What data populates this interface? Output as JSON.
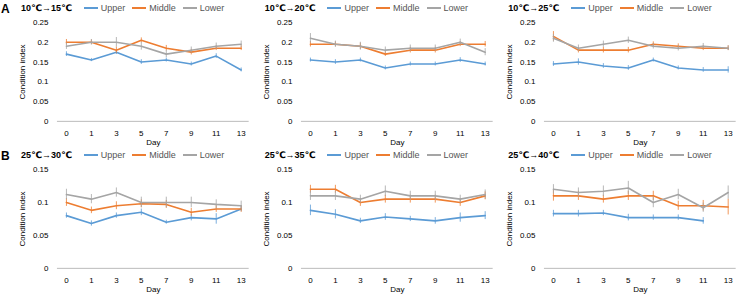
{
  "row_labels": [
    "A",
    "B"
  ],
  "chart_data": [
    {
      "type": "line",
      "title": "10℃→15℃",
      "x_label": "Day",
      "y_label": "Condition index",
      "legend": "top",
      "categories": [
        "0",
        "1",
        "3",
        "5",
        "7",
        "9",
        "11",
        "13"
      ],
      "ylim": [
        0,
        0.25
      ],
      "yticks": [
        0,
        0.05,
        0.1,
        0.15,
        0.2,
        0.25
      ],
      "series": [
        {
          "name": "Upper",
          "color": "#5b9bd5",
          "values": [
            0.17,
            0.155,
            0.175,
            0.15,
            0.155,
            0.145,
            0.165,
            0.13
          ],
          "errors": [
            0.006,
            0.004,
            0.006,
            0.006,
            0.005,
            0.005,
            0.006,
            0.005
          ]
        },
        {
          "name": "Middle",
          "color": "#ed7d31",
          "values": [
            0.2,
            0.2,
            0.18,
            0.205,
            0.185,
            0.175,
            0.185,
            0.185
          ],
          "errors": [
            0.007,
            0.006,
            0.008,
            0.006,
            0.007,
            0.007,
            0.006,
            0.006
          ]
        },
        {
          "name": "Lower",
          "color": "#a5a5a5",
          "values": [
            0.19,
            0.2,
            0.2,
            0.19,
            0.17,
            0.18,
            0.19,
            0.195
          ],
          "errors": [
            0.008,
            0.007,
            0.012,
            0.01,
            0.009,
            0.008,
            0.008,
            0.008
          ]
        }
      ]
    },
    {
      "type": "line",
      "title": "10℃→20℃",
      "x_label": "Day",
      "y_label": "Condition index",
      "legend": "top",
      "categories": [
        "0",
        "1",
        "3",
        "5",
        "7",
        "9",
        "11",
        "13"
      ],
      "ylim": [
        0,
        0.25
      ],
      "yticks": [
        0,
        0.05,
        0.1,
        0.15,
        0.2,
        0.25
      ],
      "series": [
        {
          "name": "Upper",
          "color": "#5b9bd5",
          "values": [
            0.155,
            0.15,
            0.155,
            0.135,
            0.145,
            0.145,
            0.155,
            0.145
          ],
          "errors": [
            0.005,
            0.006,
            0.005,
            0.005,
            0.005,
            0.005,
            0.006,
            0.005
          ]
        },
        {
          "name": "Middle",
          "color": "#ed7d31",
          "values": [
            0.195,
            0.195,
            0.19,
            0.17,
            0.18,
            0.18,
            0.195,
            0.195
          ],
          "errors": [
            0.007,
            0.006,
            0.008,
            0.006,
            0.007,
            0.007,
            0.006,
            0.007
          ]
        },
        {
          "name": "Lower",
          "color": "#a5a5a5",
          "values": [
            0.21,
            0.195,
            0.19,
            0.18,
            0.185,
            0.185,
            0.2,
            0.175
          ],
          "errors": [
            0.012,
            0.008,
            0.01,
            0.008,
            0.008,
            0.008,
            0.008,
            0.009
          ]
        }
      ]
    },
    {
      "type": "line",
      "title": "10℃→25℃",
      "x_label": "Day",
      "y_label": "Condition index",
      "legend": "top",
      "categories": [
        "0",
        "1",
        "3",
        "5",
        "7",
        "9",
        "11",
        "13"
      ],
      "ylim": [
        0,
        0.25
      ],
      "yticks": [
        0,
        0.05,
        0.1,
        0.15,
        0.2,
        0.25
      ],
      "series": [
        {
          "name": "Upper",
          "color": "#5b9bd5",
          "values": [
            0.145,
            0.15,
            0.14,
            0.135,
            0.155,
            0.135,
            0.13,
            0.13
          ],
          "errors": [
            0.006,
            0.008,
            0.006,
            0.006,
            0.005,
            0.005,
            0.006,
            0.008
          ]
        },
        {
          "name": "Middle",
          "color": "#ed7d31",
          "values": [
            0.215,
            0.18,
            0.18,
            0.18,
            0.195,
            0.19,
            0.185,
            0.185
          ],
          "errors": [
            0.012,
            0.007,
            0.007,
            0.007,
            0.006,
            0.006,
            0.006,
            0.006
          ]
        },
        {
          "name": "Lower",
          "color": "#a5a5a5",
          "values": [
            0.21,
            0.185,
            0.195,
            0.205,
            0.19,
            0.185,
            0.19,
            0.185
          ],
          "errors": [
            0.01,
            0.008,
            0.008,
            0.008,
            0.007,
            0.007,
            0.007,
            0.006
          ]
        }
      ]
    },
    {
      "type": "line",
      "title": "25℃→30℃",
      "x_label": "Day",
      "y_label": "Condition index",
      "legend": "top",
      "categories": [
        "0",
        "1",
        "3",
        "5",
        "7",
        "9",
        "11",
        "13"
      ],
      "ylim": [
        0,
        0.15
      ],
      "yticks": [
        0,
        0.05,
        0.1,
        0.15
      ],
      "series": [
        {
          "name": "Upper",
          "color": "#5b9bd5",
          "values": [
            0.08,
            0.068,
            0.08,
            0.085,
            0.07,
            0.077,
            0.075,
            0.09
          ],
          "errors": [
            0.004,
            0.004,
            0.004,
            0.005,
            0.003,
            0.005,
            0.008,
            0.004
          ]
        },
        {
          "name": "Middle",
          "color": "#ed7d31",
          "values": [
            0.1,
            0.088,
            0.095,
            0.098,
            0.097,
            0.085,
            0.09,
            0.09
          ],
          "errors": [
            0.006,
            0.005,
            0.006,
            0.006,
            0.006,
            0.006,
            0.005,
            0.005
          ]
        },
        {
          "name": "Lower",
          "color": "#a5a5a5",
          "values": [
            0.112,
            0.105,
            0.115,
            0.1,
            0.1,
            0.1,
            0.097,
            0.095
          ],
          "errors": [
            0.008,
            0.007,
            0.007,
            0.008,
            0.008,
            0.008,
            0.007,
            0.007
          ]
        }
      ]
    },
    {
      "type": "line",
      "title": "25℃→35℃",
      "x_label": "Day",
      "y_label": "Condition index",
      "legend": "top",
      "categories": [
        "0",
        "1",
        "3",
        "5",
        "7",
        "9",
        "11",
        "13"
      ],
      "ylim": [
        0,
        0.15
      ],
      "yticks": [
        0,
        0.05,
        0.1,
        0.15
      ],
      "series": [
        {
          "name": "Upper",
          "color": "#5b9bd5",
          "values": [
            0.088,
            0.082,
            0.072,
            0.078,
            0.075,
            0.072,
            0.077,
            0.08
          ],
          "errors": [
            0.008,
            0.007,
            0.004,
            0.005,
            0.004,
            0.005,
            0.007,
            0.006
          ]
        },
        {
          "name": "Middle",
          "color": "#ed7d31",
          "values": [
            0.12,
            0.12,
            0.1,
            0.105,
            0.105,
            0.105,
            0.1,
            0.11
          ],
          "errors": [
            0.006,
            0.006,
            0.006,
            0.006,
            0.006,
            0.006,
            0.006,
            0.006
          ]
        },
        {
          "name": "Lower",
          "color": "#a5a5a5",
          "values": [
            0.11,
            0.11,
            0.105,
            0.117,
            0.11,
            0.11,
            0.105,
            0.112
          ],
          "errors": [
            0.007,
            0.007,
            0.006,
            0.008,
            0.007,
            0.007,
            0.006,
            0.007
          ]
        }
      ]
    },
    {
      "type": "line",
      "title": "25℃→40℃",
      "x_label": "Day",
      "y_label": "Condition index",
      "legend": "top",
      "categories": [
        "0",
        "1",
        "3",
        "5",
        "7",
        "9",
        "11",
        "13"
      ],
      "ylim": [
        0,
        0.15
      ],
      "yticks": [
        0,
        0.05,
        0.1,
        0.15
      ],
      "series": [
        {
          "name": "Upper",
          "color": "#5b9bd5",
          "values": [
            0.083,
            0.083,
            0.084,
            0.077,
            0.077,
            0.077,
            0.072,
            null
          ],
          "errors": [
            0.005,
            0.005,
            0.004,
            0.005,
            0.004,
            0.004,
            0.005,
            null
          ]
        },
        {
          "name": "Middle",
          "color": "#ed7d31",
          "values": [
            0.11,
            0.11,
            0.105,
            0.11,
            0.11,
            0.095,
            0.095,
            0.093
          ],
          "errors": [
            0.008,
            0.007,
            0.006,
            0.007,
            0.007,
            0.007,
            0.008,
            0.012
          ]
        },
        {
          "name": "Lower",
          "color": "#a5a5a5",
          "values": [
            0.12,
            0.115,
            0.117,
            0.122,
            0.1,
            0.112,
            0.092,
            0.115
          ],
          "errors": [
            0.007,
            0.007,
            0.008,
            0.01,
            0.008,
            0.008,
            0.007,
            0.01
          ]
        }
      ]
    }
  ]
}
